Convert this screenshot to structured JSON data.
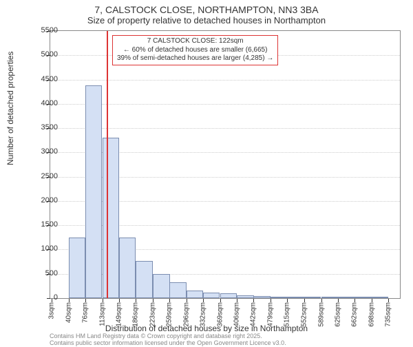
{
  "title_line1": "7, CALSTOCK CLOSE, NORTHAMPTON, NN3 3BA",
  "title_line2": "Size of property relative to detached houses in Northampton",
  "chart": {
    "type": "histogram",
    "ylabel": "Number of detached properties",
    "xlabel": "Distribution of detached houses by size in Northampton",
    "ylim": [
      0,
      5500
    ],
    "ytick_step": 500,
    "xlim": [
      0,
      760
    ],
    "plot_bg": "#ffffff",
    "grid_color": "#cccccc",
    "axis_color": "#888888",
    "bar_fill": "#d4e0f4",
    "bar_border": "#7b8db0",
    "vline_color": "#d33333",
    "bin_width": 36.6,
    "bin_starts": [
      3,
      40,
      76,
      113,
      149,
      186,
      223,
      259,
      296,
      332,
      369,
      406,
      442,
      479,
      515,
      552,
      589,
      625,
      662,
      698,
      735
    ],
    "bin_values": [
      0,
      1250,
      4380,
      3300,
      1250,
      770,
      500,
      320,
      160,
      120,
      100,
      60,
      40,
      30,
      20,
      15,
      10,
      10,
      5,
      5,
      0
    ],
    "marker_x": 122,
    "annotation": {
      "line1": "7 CALSTOCK CLOSE: 122sqm",
      "line2": "← 60% of detached houses are smaller (6,665)",
      "line3": "39% of semi-detached houses are larger (4,285) →"
    },
    "xtick_suffix": "sqm"
  },
  "footer": {
    "line1": "Contains HM Land Registry data © Crown copyright and database right 2025.",
    "line2": "Contains public sector information licensed under the Open Government Licence v3.0."
  }
}
